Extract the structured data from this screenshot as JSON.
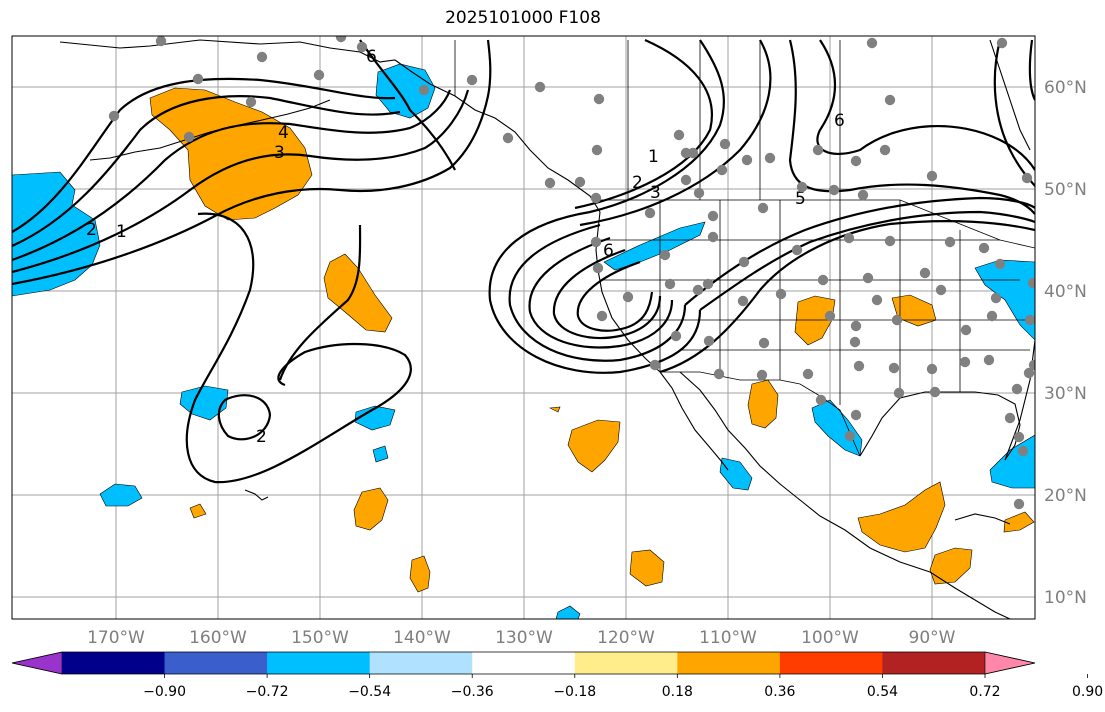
{
  "title": "2025101000 F108",
  "map": {
    "lon_labels": [
      "170°W",
      "160°W",
      "150°W",
      "140°W",
      "130°W",
      "120°W",
      "110°W",
      "100°W",
      "90°W"
    ],
    "lat_labels": [
      "60°N",
      "50°N",
      "40°N",
      "30°N",
      "20°N",
      "10°N"
    ],
    "gridlines": true,
    "contour_labels": [
      "6",
      "1",
      "2",
      "3",
      "4",
      "1",
      "2",
      "3",
      "5",
      "6",
      "6",
      "2"
    ],
    "station_marker_color": "#808080"
  },
  "colorbar": {
    "colors": [
      "#9933cc",
      "#00008b",
      "#3a5fcd",
      "#00bfff",
      "#b0e2ff",
      "#ffffff",
      "#ffec8b",
      "#ffa500",
      "#ff3d00",
      "#b22222",
      "#ff88aa"
    ],
    "ticks": [
      "−0.90",
      "−0.72",
      "−0.54",
      "−0.36",
      "−0.18",
      "0.18",
      "0.36",
      "0.54",
      "0.72",
      "0.90"
    ],
    "extend": "both"
  },
  "colors": {
    "positive": "#ffa500",
    "negative": "#00bfff",
    "contour": "#000000",
    "grid": "#a0a0a0"
  }
}
